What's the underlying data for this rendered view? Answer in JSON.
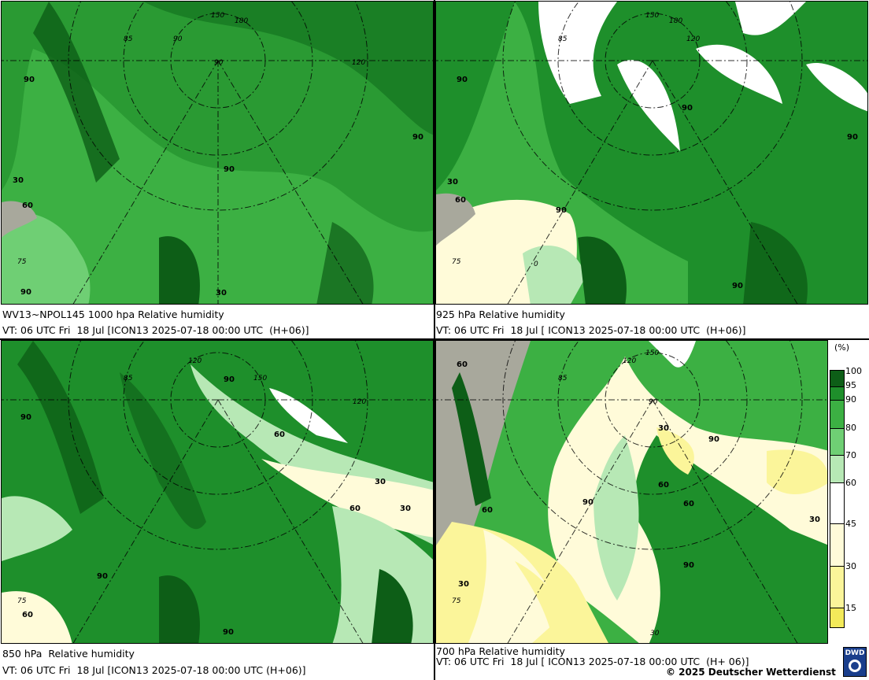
{
  "panels": [
    {
      "id": "p1000",
      "caption1": "WV13~NPOL145 1000 hpa Relative humidity",
      "caption2": "VT: 06 UTC Fri  18 Jul [ICON13 2025-07-18 00:00 UTC  (H+06)]",
      "contour_labels": [
        "90",
        "60",
        "30",
        "90",
        "90",
        "75",
        "85",
        "90",
        "120",
        "150",
        "180",
        "90",
        "90",
        "30"
      ]
    },
    {
      "id": "p925",
      "caption1": "925 hPa Relative humidity",
      "caption2": "VT: 06 UTC Fri  18 Jul [ ICON13 2025-07-18 00:00 UTC  (H+06)]",
      "contour_labels": [
        "90",
        "60",
        "30",
        "90",
        "90",
        "90",
        "75",
        "0",
        "85",
        "150",
        "180",
        "120",
        "90"
      ]
    },
    {
      "id": "p850",
      "caption1": "850 hPa  Relative humidity",
      "caption2": "VT: 06 UTC Fri  18 Jul [ICON13 2025-07-18 00:00 UTC (H+06)]",
      "contour_labels": [
        "90",
        "90",
        "60",
        "60",
        "30",
        "30",
        "90",
        "90",
        "60",
        "85",
        "120",
        "150",
        "90",
        "120",
        "75"
      ]
    },
    {
      "id": "p700",
      "caption1": "700 hPa Relative humidity",
      "caption2": "VT: 06 UTC Fri  18 Jul [ ICON13 2025-07-18 00:00 UTC  (H+ 06)]",
      "contour_labels": [
        "60",
        "30",
        "90",
        "60",
        "60",
        "90",
        "30",
        "90",
        "30",
        "30",
        "60",
        "75",
        "85",
        "120",
        "150",
        "90"
      ]
    }
  ],
  "legend": {
    "unit": "(%)",
    "ticks": [
      "100",
      "95",
      "90",
      "80",
      "70",
      "60",
      "45",
      "30",
      "15"
    ],
    "colors": [
      "#0d5e17",
      "#1e8f2b",
      "#3cb043",
      "#6fcf74",
      "#b7e8b5",
      "#ffffff",
      "#fffbd9",
      "#fbf59a",
      "#f3ea5a"
    ]
  },
  "copyright": "© 2025 Deutscher Wetterdienst",
  "logo_text": "DWD",
  "map_colors": {
    "rh95": "#0d5e17",
    "rh90": "#1e8f2b",
    "rh80": "#3cb043",
    "rh70": "#6fcf74",
    "rh60": "#b7e8b5",
    "rh45": "#fffbd9",
    "rh30": "#fbf59a",
    "rh15": "#f3ea5a",
    "land_gray": "#a8a89c",
    "white": "#ffffff"
  }
}
